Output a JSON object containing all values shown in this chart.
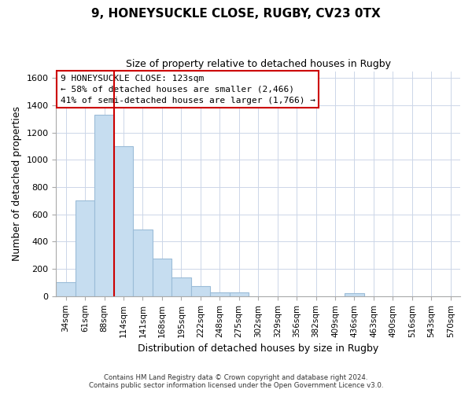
{
  "title": "9, HONEYSUCKLE CLOSE, RUGBY, CV23 0TX",
  "subtitle": "Size of property relative to detached houses in Rugby",
  "xlabel": "Distribution of detached houses by size in Rugby",
  "ylabel": "Number of detached properties",
  "bin_labels": [
    "34sqm",
    "61sqm",
    "88sqm",
    "114sqm",
    "141sqm",
    "168sqm",
    "195sqm",
    "222sqm",
    "248sqm",
    "275sqm",
    "302sqm",
    "329sqm",
    "356sqm",
    "382sqm",
    "409sqm",
    "436sqm",
    "463sqm",
    "490sqm",
    "516sqm",
    "543sqm",
    "570sqm"
  ],
  "bar_values": [
    100,
    700,
    1330,
    1100,
    490,
    275,
    135,
    75,
    30,
    30,
    0,
    0,
    0,
    0,
    0,
    20,
    0,
    0,
    0,
    0,
    0
  ],
  "bar_color": "#c6ddf0",
  "bar_edge_color": "#9bbcd8",
  "vline_color": "#cc0000",
  "annotation_title": "9 HONEYSUCKLE CLOSE: 123sqm",
  "annotation_line2": "← 58% of detached houses are smaller (2,466)",
  "annotation_line3": "41% of semi-detached houses are larger (1,766) →",
  "annotation_box_edgecolor": "#cc0000",
  "annotation_box_facecolor": "#ffffff",
  "ylim": [
    0,
    1650
  ],
  "yticks": [
    0,
    200,
    400,
    600,
    800,
    1000,
    1200,
    1400,
    1600
  ],
  "footer_line1": "Contains HM Land Registry data © Crown copyright and database right 2024.",
  "footer_line2": "Contains public sector information licensed under the Open Government Licence v3.0.",
  "background_color": "#ffffff",
  "grid_color": "#ccd6e8"
}
